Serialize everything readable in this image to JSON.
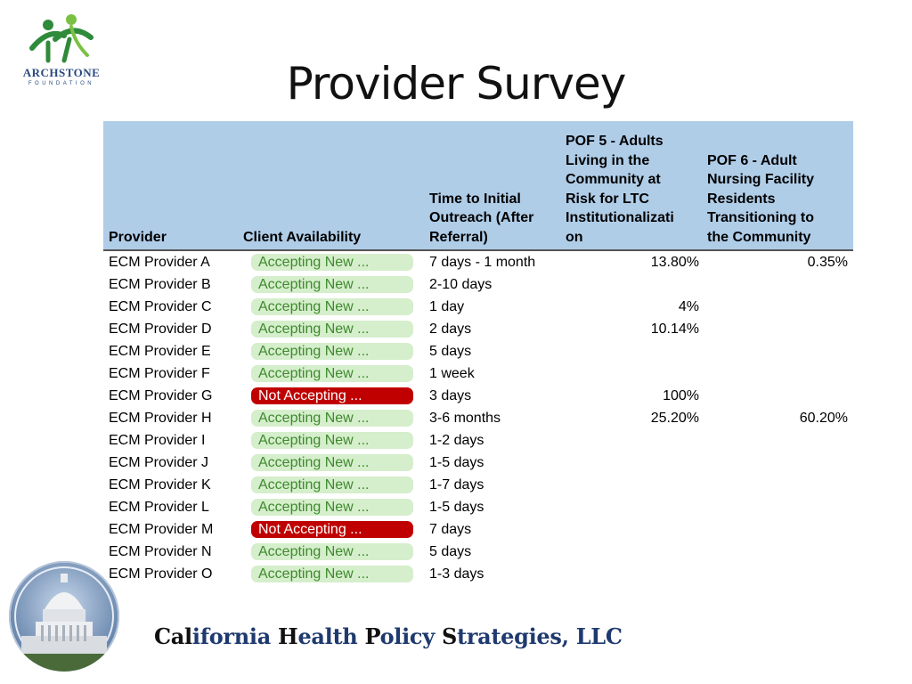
{
  "logo": {
    "name": "ARCHSTONE",
    "sub": "FOUNDATION"
  },
  "title": "Provider Survey",
  "table": {
    "headers": {
      "provider": "Provider",
      "client_availability": "Client Availability",
      "time_lines": [
        "Time to Initial",
        "Outreach (After",
        "Referral)"
      ],
      "pof5_lines": [
        "POF 5 - Adults",
        "Living in the",
        "Community at",
        "Risk for LTC",
        "Institutionalizati",
        "on"
      ],
      "pof6_lines": [
        "POF 6 - Adult",
        "Nursing Facility",
        "Residents",
        "Transitioning to",
        "the Community"
      ]
    },
    "rows": [
      {
        "provider": "ECM Provider A",
        "availability": "Accepting New ...",
        "status": "accepting",
        "time": "7 days - 1 month",
        "pof5": "13.80%",
        "pof6": "0.35%"
      },
      {
        "provider": "ECM Provider B",
        "availability": "Accepting New ...",
        "status": "accepting",
        "time": "2-10 days",
        "pof5": "",
        "pof6": ""
      },
      {
        "provider": "ECM Provider C",
        "availability": "Accepting New ...",
        "status": "accepting",
        "time": "1 day",
        "pof5": "4%",
        "pof6": ""
      },
      {
        "provider": "ECM Provider D",
        "availability": "Accepting New ...",
        "status": "accepting",
        "time": "2 days",
        "pof5": "10.14%",
        "pof6": ""
      },
      {
        "provider": "ECM Provider E",
        "availability": "Accepting New ...",
        "status": "accepting",
        "time": "5 days",
        "pof5": "",
        "pof6": ""
      },
      {
        "provider": "ECM Provider F",
        "availability": "Accepting New ...",
        "status": "accepting",
        "time": "1 week",
        "pof5": "",
        "pof6": ""
      },
      {
        "provider": "ECM Provider G",
        "availability": "Not Accepting ...",
        "status": "notaccepting",
        "time": "3 days",
        "pof5": "100%",
        "pof6": ""
      },
      {
        "provider": "ECM Provider H",
        "availability": "Accepting New ...",
        "status": "accepting",
        "time": "3-6 months",
        "pof5": "25.20%",
        "pof6": "60.20%"
      },
      {
        "provider": "ECM Provider I",
        "availability": "Accepting New ...",
        "status": "accepting",
        "time": "1-2 days",
        "pof5": "",
        "pof6": ""
      },
      {
        "provider": "ECM Provider J",
        "availability": "Accepting New ...",
        "status": "accepting",
        "time": "1-5 days",
        "pof5": "",
        "pof6": ""
      },
      {
        "provider": "ECM Provider K",
        "availability": "Accepting New ...",
        "status": "accepting",
        "time": "1-7 days",
        "pof5": "",
        "pof6": ""
      },
      {
        "provider": "ECM Provider L",
        "availability": "Accepting New ...",
        "status": "accepting",
        "time": "1-5 days",
        "pof5": "",
        "pof6": ""
      },
      {
        "provider": "ECM Provider M",
        "availability": "Not Accepting ...",
        "status": "notaccepting",
        "time": "7 days",
        "pof5": "",
        "pof6": ""
      },
      {
        "provider": "ECM Provider N",
        "availability": "Accepting New ...",
        "status": "accepting",
        "time": "5 days",
        "pof5": "",
        "pof6": ""
      },
      {
        "provider": "ECM Provider O",
        "availability": "Accepting New ...",
        "status": "accepting",
        "time": "1-3 days",
        "pof5": "",
        "pof6": ""
      }
    ]
  },
  "footer": {
    "parts": [
      {
        "text": "Cal",
        "cap": true
      },
      {
        "text": "ifornia ",
        "cap": false
      },
      {
        "text": "H",
        "cap": true
      },
      {
        "text": "ealth ",
        "cap": false
      },
      {
        "text": "P",
        "cap": true
      },
      {
        "text": "olicy ",
        "cap": false
      },
      {
        "text": "S",
        "cap": true
      },
      {
        "text": "trategies, LLC",
        "cap": false
      }
    ]
  },
  "colors": {
    "header_bg": "#b0cde8",
    "accepting_bg": "#d5eecb",
    "accepting_text": "#3e8a2e",
    "not_accepting_bg": "#c00000",
    "footer_text": "#1f3a6e"
  },
  "icons": {
    "logo": "archstone-figures-icon",
    "seal": "capitol-dome-seal-icon"
  }
}
